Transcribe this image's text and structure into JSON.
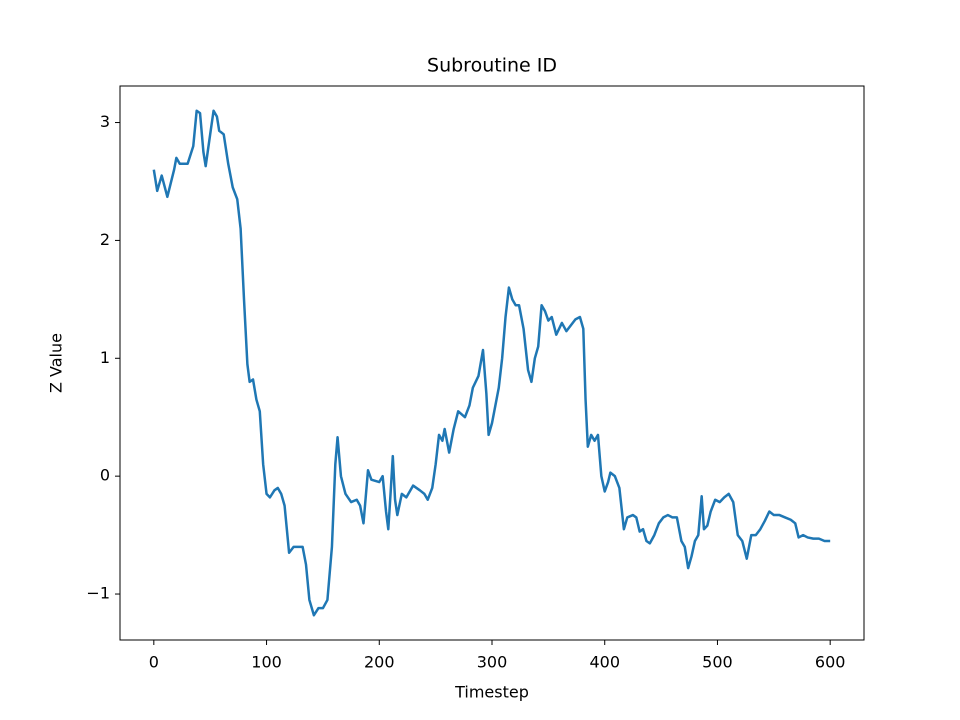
{
  "chart_data": {
    "type": "line",
    "title": "Subroutine ID",
    "xlabel": "Timestep",
    "ylabel": "Z Value",
    "x": [
      0,
      3,
      7,
      12,
      18,
      20,
      23,
      30,
      35,
      38,
      41,
      44,
      46,
      50,
      53,
      56,
      58,
      62,
      66,
      70,
      74,
      77,
      80,
      83,
      85,
      88,
      91,
      94,
      97,
      100,
      103,
      107,
      110,
      113,
      116,
      120,
      124,
      132,
      135,
      138,
      142,
      146,
      150,
      154,
      158,
      161,
      163,
      166,
      170,
      175,
      180,
      183,
      186,
      190,
      193,
      200,
      203,
      206,
      208,
      210,
      212,
      214,
      216,
      220,
      224,
      230,
      236,
      240,
      243,
      247,
      250,
      253,
      256,
      258,
      262,
      266,
      270,
      276,
      280,
      283,
      288,
      292,
      295,
      297,
      300,
      302,
      306,
      309,
      312,
      315,
      318,
      321,
      324,
      328,
      332,
      335,
      338,
      341,
      344,
      347,
      350,
      353,
      357,
      362,
      366,
      370,
      374,
      378,
      381,
      383,
      385,
      388,
      391,
      394,
      397,
      400,
      403,
      405,
      409,
      413,
      417,
      420,
      425,
      428,
      431,
      434,
      437,
      440,
      444,
      448,
      452,
      456,
      460,
      464,
      468,
      471,
      474,
      477,
      480,
      483,
      486,
      488,
      491,
      494,
      498,
      502,
      506,
      510,
      514,
      518,
      522,
      526,
      530,
      534,
      538,
      542,
      546,
      550,
      555,
      560,
      565,
      569,
      572,
      576,
      580,
      585,
      590,
      595,
      600
    ],
    "series": [
      {
        "name": "Z Value",
        "color": "#1f77b4",
        "values": [
          2.6,
          2.42,
          2.55,
          2.37,
          2.6,
          2.7,
          2.65,
          2.65,
          2.8,
          3.1,
          3.08,
          2.75,
          2.63,
          2.9,
          3.1,
          3.05,
          2.93,
          2.9,
          2.65,
          2.45,
          2.35,
          2.1,
          1.5,
          0.95,
          0.8,
          0.82,
          0.65,
          0.55,
          0.1,
          -0.15,
          -0.18,
          -0.12,
          -0.1,
          -0.15,
          -0.25,
          -0.65,
          -0.6,
          -0.6,
          -0.75,
          -1.05,
          -1.18,
          -1.12,
          -1.12,
          -1.05,
          -0.6,
          0.1,
          0.33,
          0.0,
          -0.15,
          -0.22,
          -0.2,
          -0.25,
          -0.4,
          0.05,
          -0.03,
          -0.05,
          0.0,
          -0.3,
          -0.45,
          -0.15,
          0.17,
          -0.2,
          -0.33,
          -0.15,
          -0.18,
          -0.08,
          -0.12,
          -0.15,
          -0.2,
          -0.1,
          0.1,
          0.35,
          0.3,
          0.4,
          0.2,
          0.4,
          0.55,
          0.5,
          0.6,
          0.75,
          0.85,
          1.07,
          0.7,
          0.35,
          0.45,
          0.55,
          0.75,
          1.0,
          1.35,
          1.6,
          1.5,
          1.45,
          1.45,
          1.25,
          0.9,
          0.8,
          1.0,
          1.1,
          1.45,
          1.4,
          1.32,
          1.35,
          1.2,
          1.3,
          1.23,
          1.28,
          1.33,
          1.35,
          1.25,
          0.65,
          0.25,
          0.35,
          0.3,
          0.35,
          0.0,
          -0.13,
          -0.05,
          0.03,
          0.0,
          -0.1,
          -0.45,
          -0.35,
          -0.33,
          -0.35,
          -0.47,
          -0.45,
          -0.55,
          -0.57,
          -0.5,
          -0.4,
          -0.35,
          -0.33,
          -0.35,
          -0.35,
          -0.55,
          -0.6,
          -0.78,
          -0.68,
          -0.55,
          -0.5,
          -0.17,
          -0.45,
          -0.42,
          -0.3,
          -0.2,
          -0.22,
          -0.18,
          -0.15,
          -0.22,
          -0.5,
          -0.55,
          -0.7,
          -0.5,
          -0.5,
          -0.45,
          -0.38,
          -0.3,
          -0.33,
          -0.33,
          -0.35,
          -0.37,
          -0.4,
          -0.52,
          -0.5,
          -0.52,
          -0.53,
          -0.53,
          -0.55,
          -0.55
        ]
      }
    ],
    "xlim": [
      -30,
      630
    ],
    "xticks": [
      0,
      100,
      200,
      300,
      400,
      500,
      600
    ],
    "ylim": [
      -1.39,
      3.31
    ],
    "yticks": [
      {
        "value": -1,
        "label": "−1"
      },
      0,
      1,
      2,
      3
    ],
    "grid": false
  }
}
